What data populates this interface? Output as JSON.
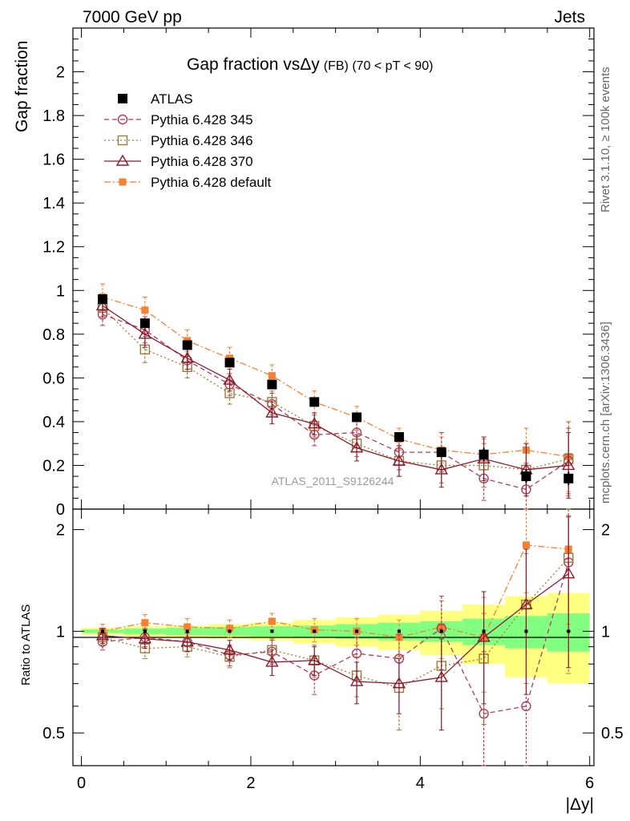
{
  "header": {
    "left": "7000 GeV pp",
    "right": "Jets"
  },
  "side_labels": {
    "rivet": "Rivet 3.1.10, ≥ 100k events",
    "mcplots": "mcplots.cern.ch [arXiv:1306.3436]"
  },
  "chart_data": {
    "type": "scatter",
    "title_main": "Gap fraction vsΔy",
    "title_sub": "(FB) (70 < pT <  90)",
    "ylabel_top": "Gap fraction",
    "ylabel_bottom": "Ratio to ATLAS",
    "xlabel": "|Δy|",
    "watermark": "ATLAS_2011_S9126244",
    "x": [
      0.25,
      0.75,
      1.25,
      1.75,
      2.25,
      2.75,
      3.25,
      3.75,
      4.25,
      4.75,
      5.25,
      5.75
    ],
    "xlim": [
      -0.1,
      6.05
    ],
    "ylim_top": [
      0,
      2.2
    ],
    "ylim_bottom_log": [
      0.4,
      2.3
    ],
    "x_ticks": [
      "0",
      "2",
      "4",
      "6"
    ],
    "y_ticks_top": [
      "0",
      "0.2",
      "0.4",
      "0.6",
      "0.8",
      "1",
      "1.2",
      "1.4",
      "1.6",
      "1.8",
      "2"
    ],
    "y_ticks_bottom": [
      "0.5",
      "1",
      "2"
    ],
    "bands": {
      "green_half_width": [
        0.012,
        0.02,
        0.025,
        0.03,
        0.035,
        0.04,
        0.05,
        0.06,
        0.07,
        0.09,
        0.11,
        0.13
      ],
      "yellow_half_width": [
        0.025,
        0.035,
        0.04,
        0.05,
        0.06,
        0.08,
        0.1,
        0.12,
        0.15,
        0.2,
        0.27,
        0.3
      ]
    },
    "series": [
      {
        "name": "ATLAS",
        "marker": "filled-square",
        "color": "#000000",
        "values": [
          0.96,
          0.85,
          0.75,
          0.67,
          0.57,
          0.49,
          0.42,
          0.33,
          0.26,
          0.25,
          0.15,
          0.14
        ],
        "errors": [
          0.02,
          0.02,
          0.02,
          0.02,
          0.02,
          0.02,
          0.02,
          0.02,
          0.02,
          0.03,
          0.03,
          0.03
        ]
      },
      {
        "name": "Pythia 6.428 345",
        "marker": "open-circle",
        "color": "#b13a5b",
        "line": "dashed",
        "values": [
          0.89,
          0.82,
          0.68,
          0.57,
          0.48,
          0.34,
          0.35,
          0.26,
          0.26,
          0.14,
          0.09,
          0.22
        ],
        "errors": [
          0.05,
          0.06,
          0.05,
          0.05,
          0.05,
          0.05,
          0.06,
          0.08,
          0.09,
          0.1,
          0.12,
          0.15
        ],
        "ratios": [
          0.93,
          0.96,
          0.93,
          0.85,
          0.87,
          0.74,
          0.86,
          0.83,
          1.02,
          0.57,
          0.6,
          1.6
        ],
        "ratio_errors": [
          0.05,
          0.06,
          0.06,
          0.06,
          0.07,
          0.09,
          0.1,
          0.15,
          0.25,
          0.3,
          0.6,
          0.6
        ]
      },
      {
        "name": "Pythia 6.428 346",
        "marker": "open-square",
        "color": "#9c7a37",
        "line": "dotted",
        "values": [
          0.92,
          0.73,
          0.65,
          0.53,
          0.49,
          0.38,
          0.3,
          0.22,
          0.2,
          0.2,
          0.18,
          0.23
        ],
        "errors": [
          0.05,
          0.06,
          0.05,
          0.05,
          0.05,
          0.05,
          0.06,
          0.07,
          0.08,
          0.1,
          0.12,
          0.17
        ],
        "ratios": [
          0.96,
          0.89,
          0.9,
          0.84,
          0.88,
          0.82,
          0.74,
          0.68,
          0.79,
          0.83,
          1.2,
          1.65
        ],
        "ratio_errors": [
          0.05,
          0.06,
          0.06,
          0.06,
          0.07,
          0.09,
          0.1,
          0.17,
          0.2,
          0.3,
          0.5,
          0.9
        ]
      },
      {
        "name": "Pythia 6.428 370",
        "marker": "open-triangle",
        "color": "#8b1a2e",
        "line": "solid",
        "values": [
          0.93,
          0.8,
          0.69,
          0.59,
          0.44,
          0.39,
          0.28,
          0.22,
          0.18,
          0.23,
          0.18,
          0.2
        ],
        "errors": [
          0.05,
          0.06,
          0.05,
          0.05,
          0.05,
          0.05,
          0.06,
          0.07,
          0.08,
          0.1,
          0.12,
          0.15
        ],
        "ratios": [
          0.97,
          0.95,
          0.93,
          0.88,
          0.81,
          0.82,
          0.71,
          0.7,
          0.73,
          0.96,
          1.2,
          1.48
        ],
        "ratio_errors": [
          0.05,
          0.06,
          0.06,
          0.06,
          0.07,
          0.08,
          0.1,
          0.13,
          0.22,
          0.35,
          0.55,
          0.7
        ]
      },
      {
        "name": "Pythia 6.428 default",
        "marker": "filled-square-small",
        "color": "#f58032",
        "line": "dashdot",
        "values": [
          0.97,
          0.91,
          0.77,
          0.69,
          0.61,
          0.49,
          0.42,
          0.32,
          0.27,
          0.25,
          0.27,
          0.24
        ],
        "errors": [
          0.06,
          0.06,
          0.05,
          0.05,
          0.05,
          0.05,
          0.05,
          0.05,
          0.06,
          0.07,
          0.1,
          0.16
        ],
        "ratios": [
          1.0,
          1.06,
          1.03,
          1.02,
          1.07,
          1.01,
          1.0,
          0.96,
          1.03,
          0.96,
          1.8,
          1.75
        ],
        "ratio_errors": [
          0.05,
          0.06,
          0.06,
          0.06,
          0.06,
          0.08,
          0.09,
          0.12,
          0.2,
          0.3,
          0.5,
          0.7
        ]
      }
    ]
  }
}
